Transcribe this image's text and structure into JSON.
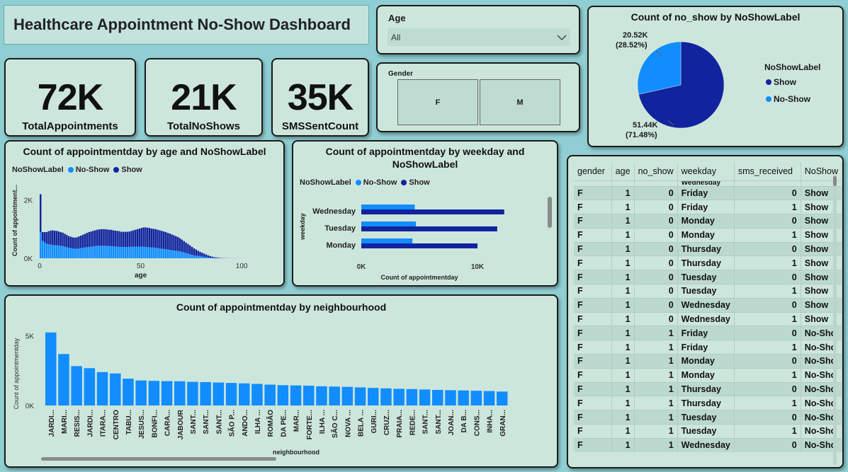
{
  "title": "Healthcare Appointment No-Show Dashboard",
  "kpis": [
    {
      "value": "72K",
      "label": "TotalAppointments"
    },
    {
      "value": "21K",
      "label": "TotalNoShows"
    },
    {
      "value": "35K",
      "label": "SMSSentCount"
    }
  ],
  "age_filter": {
    "label": "Age",
    "selected": "All"
  },
  "gender_filter": {
    "label": "Gender",
    "options": [
      "F",
      "M"
    ]
  },
  "colors": {
    "show": "#12239e",
    "no_show": "#118dff",
    "background": "#8fcfd3",
    "card": "#cde6dc"
  },
  "pie": {
    "title": "Count of no_show by NoShowLabel",
    "legend_title": "NoShowLabel",
    "show_label_value": "51.44K",
    "show_label_pct": "(71.48%)",
    "noshow_label_value": "20.52K",
    "noshow_label_pct": "(28.52%)"
  },
  "age_chart": {
    "title": "Count of appointmentday by age and NoShowLabel",
    "legend_title": "NoShowLabel",
    "ylabel": "Count of appointment...",
    "xlabel": "age",
    "yticks": [
      "2K",
      "0K"
    ],
    "xticks": [
      "0",
      "50",
      "100"
    ]
  },
  "weekday_chart": {
    "title_line1": "Count of appointmentday by weekday and",
    "title_line2": "NoShowLabel",
    "legend_title": "NoShowLabel",
    "ylabel": "weekday",
    "xlabel": "Count of appointmentday",
    "xticks": [
      "0K",
      "10K"
    ]
  },
  "neighbourhood_chart": {
    "title": "Count of appointmentday by neighbourhood",
    "ylabel": "Count of appointmentday",
    "xlabel": "neighbourhood",
    "yticks": [
      "5K",
      "0K"
    ]
  },
  "legend_labels": {
    "no_show": "No-Show",
    "show": "Show"
  },
  "chart_data": [
    {
      "type": "pie",
      "title": "Count of no_show by NoShowLabel",
      "categories": [
        "Show",
        "No-Show"
      ],
      "values": [
        51.44,
        20.52
      ],
      "units": "K"
    },
    {
      "type": "bar",
      "title": "Count of appointmentday by age and NoShowLabel",
      "xlabel": "age",
      "ylabel": "Count of appointment...",
      "x_start": 0,
      "stacked": true,
      "ylim": [
        0,
        2600
      ],
      "series": [
        {
          "name": "No-Show",
          "values": [
            900,
            600,
            550,
            500,
            480,
            470,
            460,
            450,
            450,
            440,
            430,
            420,
            400,
            380,
            360,
            350,
            340,
            330,
            330,
            340,
            350,
            360,
            370,
            380,
            390,
            400,
            410,
            420,
            430,
            430,
            430,
            430,
            430,
            430,
            420,
            420,
            410,
            410,
            400,
            400,
            390,
            390,
            390,
            390,
            390,
            400,
            400,
            400,
            400,
            400,
            400,
            400,
            390,
            380,
            380,
            370,
            370,
            360,
            350,
            340,
            330,
            320,
            310,
            300,
            290,
            280,
            270,
            260,
            250,
            240,
            220,
            200,
            180,
            160,
            140,
            120,
            100,
            90,
            80,
            70,
            60,
            50,
            40,
            30,
            20,
            15,
            10,
            8,
            6,
            5,
            4,
            3,
            2,
            2,
            1,
            1,
            1,
            1,
            1,
            1,
            1
          ]
        },
        {
          "name": "Show",
          "values": [
            1300,
            300,
            350,
            400,
            450,
            480,
            500,
            500,
            490,
            480,
            470,
            460,
            440,
            420,
            400,
            390,
            380,
            380,
            390,
            410,
            430,
            450,
            470,
            490,
            510,
            520,
            530,
            540,
            550,
            560,
            570,
            570,
            570,
            560,
            560,
            560,
            550,
            540,
            540,
            530,
            520,
            520,
            520,
            520,
            530,
            540,
            560,
            580,
            600,
            620,
            640,
            660,
            670,
            670,
            660,
            650,
            640,
            640,
            630,
            620,
            610,
            600,
            590,
            570,
            560,
            540,
            520,
            500,
            480,
            450,
            420,
            390,
            360,
            330,
            300,
            270,
            240,
            210,
            180,
            150,
            130,
            110,
            90,
            70,
            55,
            40,
            30,
            22,
            15,
            10,
            7,
            5,
            3,
            2,
            2,
            1,
            1,
            1,
            1,
            1,
            1
          ]
        }
      ]
    },
    {
      "type": "bar",
      "orientation": "horizontal",
      "title": "Count of appointmentday by weekday and NoShowLabel",
      "xlabel": "Count of appointmentday",
      "ylabel": "weekday",
      "categories": [
        "Wednesday",
        "Tuesday",
        "Monday"
      ],
      "xlim": [
        0,
        15000
      ],
      "series": [
        {
          "name": "No-Show",
          "values": [
            4600,
            4700,
            4400
          ]
        },
        {
          "name": "Show",
          "values": [
            12300,
            11700,
            10000
          ]
        }
      ]
    },
    {
      "type": "bar",
      "title": "Count of appointmentday by neighbourhood",
      "xlabel": "neighbourhood",
      "ylabel": "Count of appointmentday",
      "ylim": [
        0,
        6000
      ],
      "categories": [
        "JARDI...",
        "MARI...",
        "RESIS...",
        "JARDI...",
        "ITARA...",
        "CENTRO",
        "TABU...",
        "JESUS...",
        "BONFI...",
        "CARA...",
        "JABOUR",
        "SANT...",
        "SANT...",
        "SANT...",
        "SÃO P...",
        "ANDO...",
        "ILHA ...",
        "ROMÃO",
        "DA PE...",
        "MAR...",
        "FORTE...",
        "ILHA ...",
        "SÃO C...",
        "NOVA ...",
        "BELA ...",
        "GURI...",
        "CRUZ...",
        "PRAIA...",
        "REDE...",
        "SANT...",
        "SANT...",
        "JOAN...",
        "DA B...",
        "CONS...",
        "INHA...",
        "GRAN..."
      ],
      "values": [
        5250,
        3700,
        2830,
        2680,
        2400,
        2300,
        1930,
        1800,
        1770,
        1750,
        1740,
        1700,
        1680,
        1650,
        1620,
        1590,
        1550,
        1500,
        1460,
        1440,
        1420,
        1380,
        1360,
        1340,
        1300,
        1260,
        1230,
        1200,
        1180,
        1150,
        1120,
        1100,
        1080,
        1060,
        1040,
        1000
      ]
    }
  ],
  "table": {
    "columns": [
      "gender",
      "age",
      "no_show",
      "weekday",
      "sms_received",
      "NoShow"
    ],
    "partial_row": [
      "",
      "",
      "",
      "Wednesday",
      "",
      ""
    ],
    "rows": [
      [
        "F",
        "1",
        "0",
        "Friday",
        "0",
        "Show"
      ],
      [
        "F",
        "1",
        "0",
        "Friday",
        "1",
        "Show"
      ],
      [
        "F",
        "1",
        "0",
        "Monday",
        "0",
        "Show"
      ],
      [
        "F",
        "1",
        "0",
        "Monday",
        "1",
        "Show"
      ],
      [
        "F",
        "1",
        "0",
        "Thursday",
        "0",
        "Show"
      ],
      [
        "F",
        "1",
        "0",
        "Thursday",
        "1",
        "Show"
      ],
      [
        "F",
        "1",
        "0",
        "Tuesday",
        "0",
        "Show"
      ],
      [
        "F",
        "1",
        "0",
        "Tuesday",
        "1",
        "Show"
      ],
      [
        "F",
        "1",
        "0",
        "Wednesday",
        "0",
        "Show"
      ],
      [
        "F",
        "1",
        "0",
        "Wednesday",
        "1",
        "Show"
      ],
      [
        "F",
        "1",
        "1",
        "Friday",
        "0",
        "No-Sho"
      ],
      [
        "F",
        "1",
        "1",
        "Friday",
        "1",
        "No-Sho"
      ],
      [
        "F",
        "1",
        "1",
        "Monday",
        "0",
        "No-Sho"
      ],
      [
        "F",
        "1",
        "1",
        "Monday",
        "1",
        "No-Sho"
      ],
      [
        "F",
        "1",
        "1",
        "Thursday",
        "0",
        "No-Sho"
      ],
      [
        "F",
        "1",
        "1",
        "Thursday",
        "1",
        "No-Sho"
      ],
      [
        "F",
        "1",
        "1",
        "Tuesday",
        "0",
        "No-Sho"
      ],
      [
        "F",
        "1",
        "1",
        "Tuesday",
        "1",
        "No-Sho"
      ],
      [
        "F",
        "1",
        "1",
        "Wednesday",
        "0",
        "No-Sho"
      ]
    ]
  }
}
